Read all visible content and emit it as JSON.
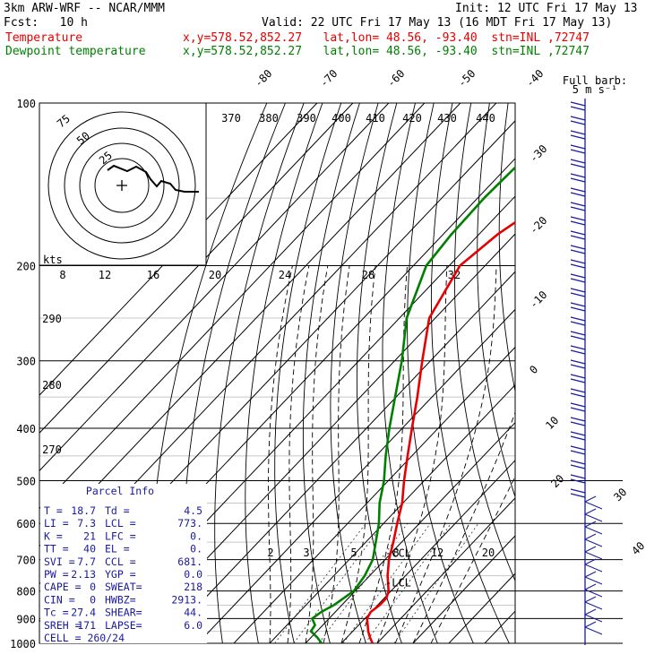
{
  "header": {
    "model": "3km ARW-WRF -- NCAR/MMM",
    "init": "Init: 12 UTC Fri 17 May 13",
    "fcst": "Fcst:   10 h",
    "valid": "Valid: 22 UTC Fri 17 May 13 (16 MDT Fri 17 May 13)",
    "temp_label": "Temperature",
    "dew_label": "Dewpoint temperature",
    "temp_info": "x,y=578.52,852.27   lat,lon= 48.56, -93.40  stn=INL ,72747",
    "dew_info": "x,y=578.52,852.27   lat,lon= 48.56, -93.40  stn=INL ,72747"
  },
  "colors": {
    "temperature": "#e60000",
    "dewpoint": "#008000",
    "parcel": "#1a1aa0",
    "wind": "#1a1aa0"
  },
  "chart_data": {
    "type": "line",
    "title": "Skew-T log-P sounding",
    "pressure_levels": [
      100,
      200,
      300,
      400,
      500,
      600,
      700,
      800,
      900,
      1000
    ],
    "pressure_labels": [
      "100",
      "200",
      "300",
      "400",
      "500",
      "600",
      "700",
      "800",
      "900",
      "1000"
    ],
    "isotherm_labels_top": [
      "-80",
      "-70",
      "-60",
      "-50",
      "-40"
    ],
    "isotherm_labels_right": [
      "-30",
      "-20",
      "-10",
      "0",
      "10",
      "20",
      "30",
      "40"
    ],
    "theta_labels": [
      "370",
      "380",
      "390",
      "400",
      "410",
      "420",
      "430",
      "440"
    ],
    "theta_e_labels": [
      "290",
      "280",
      "270"
    ],
    "mixing_ratio_labels": [
      "2",
      "3",
      "5",
      "8",
      "12",
      "20"
    ],
    "hodograph": {
      "unit": "kts",
      "ring_labels": [
        "25",
        "50",
        "75"
      ],
      "speed_labels": [
        "8",
        "12",
        "16",
        "20",
        "24",
        "28",
        "32"
      ]
    },
    "wind_box_label": "Full barb:",
    "wind_box_unit": "5 m s⁻¹",
    "temperature": [
      {
        "p": 1000,
        "t": 18.7
      },
      {
        "p": 975,
        "t": 16.4
      },
      {
        "p": 950,
        "t": 14.3
      },
      {
        "p": 925,
        "t": 12.5
      },
      {
        "p": 900,
        "t": 10.6
      },
      {
        "p": 875,
        "t": 9.9
      },
      {
        "p": 850,
        "t": 10.6
      },
      {
        "p": 825,
        "t": 10.6
      },
      {
        "p": 800,
        "t": 9.3
      },
      {
        "p": 750,
        "t": 5.0
      },
      {
        "p": 700,
        "t": 1.1
      },
      {
        "p": 650,
        "t": -2.3
      },
      {
        "p": 600,
        "t": -6.2
      },
      {
        "p": 550,
        "t": -10.2
      },
      {
        "p": 500,
        "t": -15.6
      },
      {
        "p": 450,
        "t": -21.2
      },
      {
        "p": 400,
        "t": -27.3
      },
      {
        "p": 350,
        "t": -34.1
      },
      {
        "p": 300,
        "t": -42.3
      },
      {
        "p": 250,
        "t": -51.7
      },
      {
        "p": 200,
        "t": -57.0
      },
      {
        "p": 175,
        "t": -54.8
      },
      {
        "p": 150,
        "t": -49.6
      },
      {
        "p": 125,
        "t": -49.7
      },
      {
        "p": 100,
        "t": -49.7
      }
    ],
    "dewpoint": [
      {
        "p": 1000,
        "t": 4.5
      },
      {
        "p": 975,
        "t": 1.7
      },
      {
        "p": 950,
        "t": -1.7
      },
      {
        "p": 925,
        "t": -2.2
      },
      {
        "p": 900,
        "t": -4.7
      },
      {
        "p": 875,
        "t": -3.9
      },
      {
        "p": 850,
        "t": -2.2
      },
      {
        "p": 800,
        "t": -0.4
      },
      {
        "p": 750,
        "t": -1.4
      },
      {
        "p": 700,
        "t": -3.4
      },
      {
        "p": 650,
        "t": -7.2
      },
      {
        "p": 600,
        "t": -11.3
      },
      {
        "p": 550,
        "t": -16.5
      },
      {
        "p": 500,
        "t": -21.2
      },
      {
        "p": 450,
        "t": -27.3
      },
      {
        "p": 400,
        "t": -33.6
      },
      {
        "p": 350,
        "t": -40.3
      },
      {
        "p": 300,
        "t": -48.0
      },
      {
        "p": 250,
        "t": -58.0
      },
      {
        "p": 200,
        "t": -66.4
      },
      {
        "p": 175,
        "t": -67.7
      },
      {
        "p": 150,
        "t": -68.2
      },
      {
        "p": 125,
        "t": -67.4
      },
      {
        "p": 110,
        "t": -71.6
      },
      {
        "p": 100,
        "t": -72.1
      }
    ],
    "lcl_label": "-LCL",
    "ccl_label": "-CCL"
  },
  "parcel_info": {
    "title": "Parcel Info",
    "rows": [
      [
        "T  =",
        "18.7",
        "Td =",
        "4.5"
      ],
      [
        "LI =",
        "7.3",
        "LCL =",
        "773."
      ],
      [
        "K  =",
        "21",
        "LFC =",
        "0."
      ],
      [
        "TT =",
        "40",
        "EL  =",
        "0."
      ],
      [
        "SVI =",
        "7.7",
        "CCL =",
        "681."
      ],
      [
        "PW =",
        "2.13",
        "YGP =",
        "0.0"
      ],
      [
        "CAPE =",
        "0",
        "SWEAT=",
        "218"
      ],
      [
        "CIN  =",
        "0",
        "HWBZ=",
        "2913."
      ],
      [
        "Tc  =",
        "27.4",
        "SHEAR=",
        "44."
      ],
      [
        "SREH =",
        "171",
        "LAPSE=",
        "6.0"
      ]
    ],
    "cell": "CELL = 260/24"
  }
}
